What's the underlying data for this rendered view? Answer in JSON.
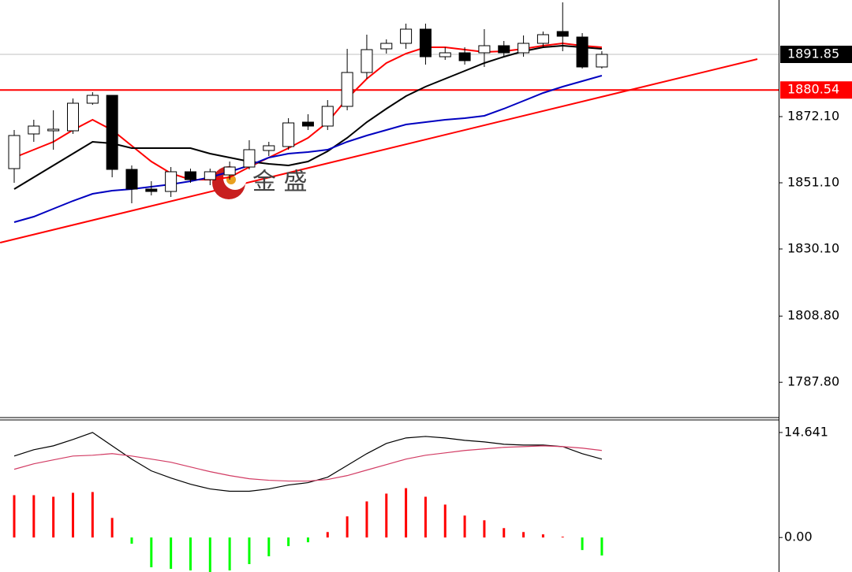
{
  "chart_data": [
    {
      "type": "candlestick",
      "open": [
        1855.6,
        1866.6,
        1867.6,
        1867.6,
        1876.35,
        1878.85,
        1855.35,
        1849.1,
        1848.35,
        1854.6,
        1852.1,
        1853.6,
        1856.1,
        1861.35,
        1862.6,
        1870.35,
        1869.1,
        1875.35,
        1886.1,
        1893.6,
        1895.35,
        1899.85,
        1891.1,
        1892.35,
        1892.35,
        1894.6,
        1892.35,
        1895.35,
        1899.1,
        1897.35,
        1887.85
      ],
      "high": [
        1867.85,
        1871.1,
        1874.1,
        1877.85,
        1879.85,
        1878.85,
        1856.6,
        1851.6,
        1856.1,
        1855.6,
        1855.6,
        1857.85,
        1864.6,
        1864.1,
        1871.6,
        1872.85,
        1877.35,
        1893.6,
        1898.1,
        1896.6,
        1901.6,
        1901.6,
        1894.1,
        1894.1,
        1899.85,
        1896.1,
        1897.85,
        1899.1,
        1908.35,
        1898.6,
        1892.85
      ],
      "low": [
        1851.1,
        1864.1,
        1861.6,
        1866.6,
        1875.85,
        1852.85,
        1844.6,
        1847.1,
        1846.6,
        1851.1,
        1850.35,
        1852.1,
        1855.35,
        1859.6,
        1861.6,
        1867.85,
        1867.85,
        1874.1,
        1884.1,
        1892.1,
        1893.6,
        1888.6,
        1890.1,
        1888.6,
        1887.85,
        1891.1,
        1891.1,
        1894.1,
        1892.85,
        1887.35,
        1887.35
      ],
      "close": [
        1866.1,
        1869.1,
        1868.1,
        1876.35,
        1878.85,
        1855.35,
        1849.1,
        1848.35,
        1854.6,
        1852.1,
        1854.6,
        1856.1,
        1861.6,
        1862.85,
        1870.1,
        1869.1,
        1875.35,
        1886.1,
        1893.35,
        1895.35,
        1899.85,
        1891.1,
        1892.35,
        1889.85,
        1894.6,
        1892.35,
        1895.35,
        1898.1,
        1897.6,
        1887.85,
        1891.85
      ],
      "up_color": "#ffffff",
      "down_color": "#000000",
      "lines": [
        {
          "color": "#ff0000",
          "values": [
            1859.1,
            1861.6,
            1864.1,
            1867.85,
            1871.1,
            1867.85,
            1862.85,
            1857.85,
            1854.1,
            1852.1,
            1852.1,
            1852.85,
            1856.1,
            1859.1,
            1862.1,
            1865.35,
            1870.35,
            1877.85,
            1884.1,
            1889.1,
            1892.1,
            1894.1,
            1894.1,
            1893.35,
            1892.6,
            1892.85,
            1893.6,
            1894.6,
            1895.35,
            1894.6,
            1894.1
          ]
        },
        {
          "color": "#000000",
          "values": [
            1849.1,
            1852.85,
            1856.6,
            1860.35,
            1864.1,
            1863.6,
            1862.1,
            1862.1,
            1862.1,
            1862.1,
            1860.35,
            1859.1,
            1857.85,
            1857.1,
            1856.6,
            1857.85,
            1861.1,
            1865.35,
            1870.35,
            1874.6,
            1878.6,
            1881.6,
            1884.1,
            1886.6,
            1889.1,
            1891.1,
            1892.85,
            1894.1,
            1894.6,
            1894.1,
            1893.6
          ]
        },
        {
          "color": "#0000c0",
          "values": [
            1838.6,
            1840.35,
            1842.85,
            1845.35,
            1847.6,
            1848.6,
            1849.1,
            1849.85,
            1850.6,
            1851.6,
            1852.85,
            1854.6,
            1856.6,
            1859.1,
            1860.35,
            1860.85,
            1861.6,
            1864.1,
            1866.1,
            1867.85,
            1869.6,
            1870.35,
            1871.1,
            1871.6,
            1872.35,
            1874.6,
            1877.1,
            1879.6,
            1881.6,
            1883.35,
            1885.1
          ]
        }
      ],
      "trend_line": {
        "x": [
          -0.72,
          37.94
        ],
        "y": [
          1832.1,
          1890.35
        ],
        "color": "#ff0000"
      },
      "current_price": 1891.85,
      "level_line": 1880.54,
      "watermark": "金 盛",
      "ylim": [
        1776.6,
        1909.1
      ],
      "yticks": [
        {
          "value": 1872.1,
          "label": "1872.10"
        },
        {
          "value": 1851.1,
          "label": "1851.10"
        },
        {
          "value": 1830.1,
          "label": "1830.10"
        },
        {
          "value": 1808.8,
          "label": "1808.80"
        },
        {
          "value": 1787.8,
          "label": "1787.80"
        }
      ]
    },
    {
      "type": "macd",
      "histogram": [
        5.9,
        5.9,
        5.68,
        6.23,
        6.34,
        2.73,
        -0.87,
        -4.15,
        -4.37,
        -4.59,
        -4.9,
        -4.59,
        -3.71,
        -2.62,
        -1.2,
        -0.66,
        0.76,
        2.95,
        5.03,
        6.12,
        6.88,
        5.68,
        4.59,
        3.06,
        2.4,
        1.31,
        0.76,
        0.44,
        0.11,
        -1.75,
        -2.51
      ],
      "macd": [
        11.36,
        12.24,
        12.78,
        13.66,
        14.64,
        12.78,
        10.93,
        9.29,
        8.3,
        7.43,
        6.77,
        6.45,
        6.45,
        6.77,
        7.32,
        7.65,
        8.41,
        10.05,
        11.69,
        13.11,
        13.88,
        14.09,
        13.88,
        13.55,
        13.33,
        13.0,
        12.89,
        12.89,
        12.67,
        11.69,
        10.93
      ],
      "signal": [
        9.51,
        10.27,
        10.82,
        11.36,
        11.47,
        11.69,
        11.36,
        10.93,
        10.49,
        9.83,
        9.18,
        8.63,
        8.19,
        7.98,
        7.87,
        7.87,
        8.09,
        8.63,
        9.4,
        10.16,
        10.93,
        11.47,
        11.8,
        12.13,
        12.35,
        12.57,
        12.67,
        12.78,
        12.67,
        12.46,
        12.13
      ],
      "up_color": "#ff0000",
      "down_color": "#00ff00",
      "macd_color": "#000000",
      "signal_color": "#d23c64",
      "ylim": [
        -4.81,
        16.28
      ],
      "yticks": [
        14.641,
        {
          "value": 0,
          "label": "0.00"
        }
      ]
    }
  ]
}
